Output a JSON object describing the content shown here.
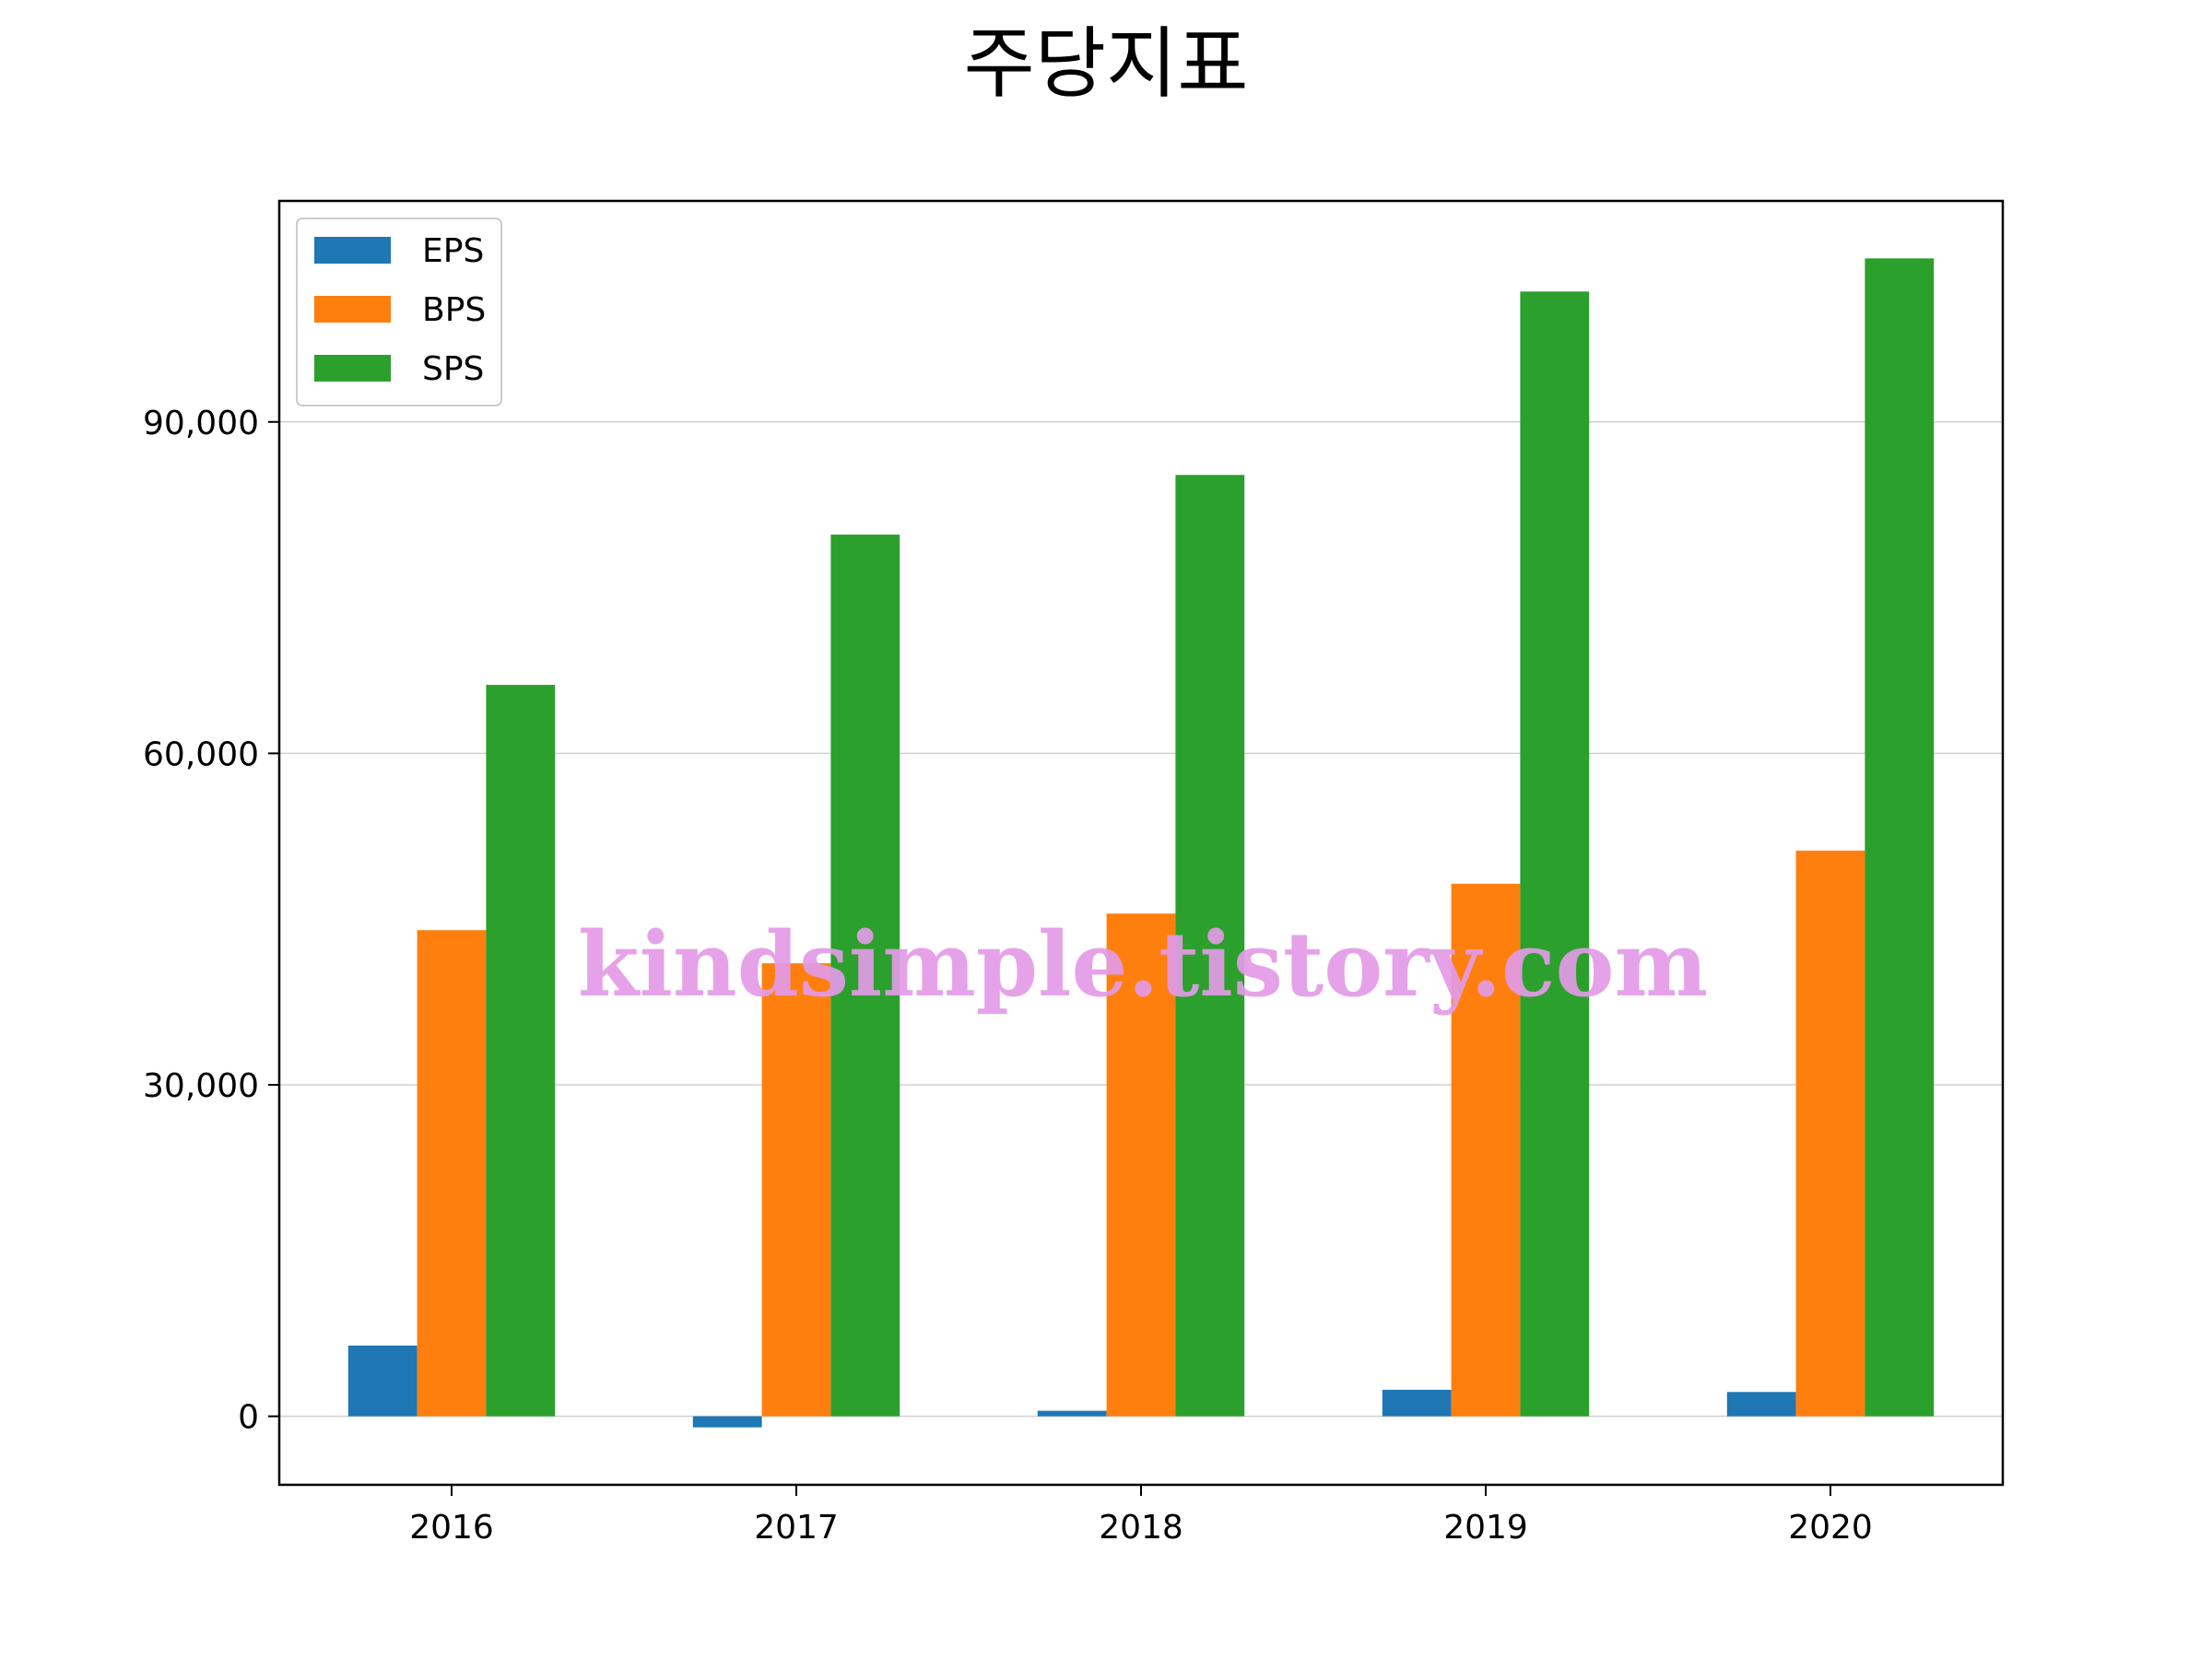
{
  "chart_data": {
    "type": "bar",
    "title": "주당지표",
    "xlabel": "",
    "ylabel": "",
    "categories": [
      "2016",
      "2017",
      "2018",
      "2019",
      "2020"
    ],
    "series": [
      {
        "name": "EPS",
        "color": "#1f77b4",
        "values": [
          6400,
          -1000,
          500,
          2400,
          2200
        ]
      },
      {
        "name": "BPS",
        "color": "#ff7f0e",
        "values": [
          44000,
          41000,
          45500,
          48200,
          51200
        ]
      },
      {
        "name": "SPS",
        "color": "#2ca02c",
        "values": [
          66200,
          79800,
          85200,
          101800,
          104800
        ]
      }
    ],
    "ylim": [
      -6200,
      110000
    ],
    "yticks": [
      0,
      30000,
      60000,
      90000
    ],
    "ytick_labels": [
      "0",
      "30,000",
      "60,000",
      "90,000"
    ],
    "grid": "horizontal",
    "legend_position": "top-left",
    "watermark": "kindsimple.tistory.com"
  }
}
